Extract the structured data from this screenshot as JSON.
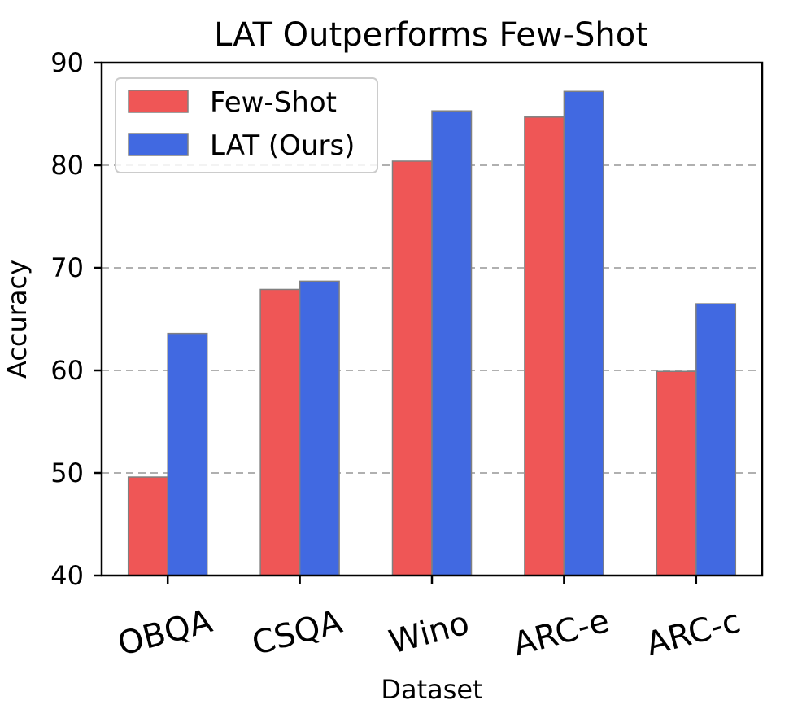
{
  "chart_data": {
    "type": "bar",
    "title": "LAT Outperforms Few-Shot",
    "xlabel": "Dataset",
    "ylabel": "Accuracy",
    "categories": [
      "OBQA",
      "CSQA",
      "Wino",
      "ARC-e",
      "ARC-c"
    ],
    "series": [
      {
        "name": "Few-Shot",
        "color": "#ef5656",
        "values": [
          49.6,
          67.9,
          80.4,
          84.7,
          59.9
        ]
      },
      {
        "name": "LAT (Ours)",
        "color": "#4169e1",
        "values": [
          63.6,
          68.7,
          85.3,
          87.2,
          66.5
        ]
      }
    ],
    "ylim": [
      40,
      90
    ],
    "yticks": [
      40,
      50,
      60,
      70,
      80,
      90
    ],
    "grid": "y-dashed",
    "legend_position": "top-left"
  }
}
